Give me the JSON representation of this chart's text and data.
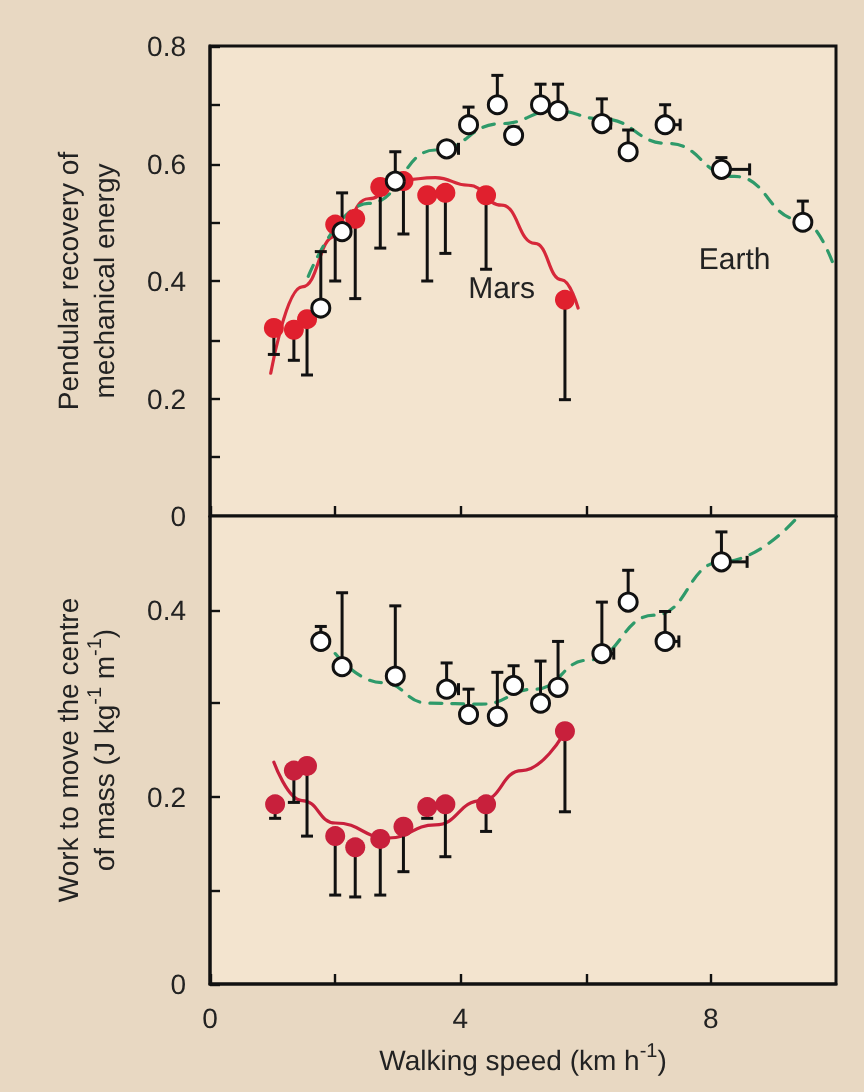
{
  "chart_data": [
    {
      "type": "scatter",
      "ylabel": "Pendular recovery of mechanical energy",
      "xlim": [
        0,
        10
      ],
      "ylim": [
        0,
        0.8
      ],
      "xticks": [
        0,
        2,
        4,
        6,
        8
      ],
      "yticks": [
        0,
        {
          "value": 0.1,
          "label": null
        },
        0.2,
        {
          "value": 0.3,
          "label": null
        },
        0.4,
        {
          "value": 0.5,
          "label": null
        },
        0.6,
        {
          "value": 0.7,
          "label": null
        },
        0.8
      ],
      "tick_labels": "y",
      "marker": "circle",
      "series": [
        {
          "type": "line",
          "name": "Mars",
          "color": "#d6283a",
          "line_style": "solid",
          "marker": "none",
          "x": [
            0.97,
            1.47,
            2.0,
            2.53,
            3.06,
            3.6,
            4.13,
            4.66,
            5.19,
            5.62,
            5.88
          ],
          "values": [
            0.243,
            0.39,
            0.476,
            0.54,
            0.572,
            0.576,
            0.563,
            0.529,
            0.464,
            0.402,
            0.354
          ]
        },
        {
          "type": "line",
          "name": "Earth",
          "color": "#2e9a6a",
          "line_style": "dashed",
          "marker": "none",
          "x": [
            1.57,
            2.53,
            3.6,
            4.66,
            5.51,
            6.26,
            7.32,
            8.38,
            9.45,
            9.98
          ],
          "values": [
            0.408,
            0.532,
            0.623,
            0.668,
            0.69,
            0.676,
            0.634,
            0.578,
            0.504,
            0.422
          ]
        },
        {
          "color": "#e0202e",
          "x": [
            1.02,
            1.34,
            1.55,
            2.0,
            2.32,
            2.72,
            3.09,
            3.47,
            3.76,
            4.41,
            5.67
          ],
          "values": [
            0.32,
            0.317,
            0.335,
            0.496,
            0.506,
            0.56,
            0.57,
            0.546,
            0.55,
            0.546,
            0.368
          ],
          "errors": [
            [
              0.275,
              0.32
            ],
            [
              0.265,
              0.317
            ],
            [
              0.24,
              0.335
            ],
            [
              0.4,
              0.496
            ],
            [
              0.37,
              0.506
            ],
            [
              0.456,
              0.56
            ],
            [
              0.48,
              0.57
            ],
            [
              0.4,
              0.546
            ],
            [
              0.447,
              0.55
            ],
            [
              0.42,
              0.546
            ],
            [
              0.198,
              0.368
            ]
          ]
        },
        {
          "color": "#ffffff",
          "x": [
            1.77,
            2.11,
            2.96,
            3.78,
            4.13,
            4.59,
            4.85,
            5.28,
            5.56,
            6.26,
            6.68,
            7.27,
            8.17,
            9.47
          ],
          "values": [
            0.354,
            0.484,
            0.57,
            0.625,
            0.666,
            0.7,
            0.648,
            0.7,
            0.69,
            0.668,
            0.62,
            0.666,
            0.59,
            0.5
          ],
          "errors": [
            [
              0.354,
              0.45
            ],
            [
              0.484,
              0.55
            ],
            [
              0.57,
              0.62
            ],
            [
              0.625,
              0.636
            ],
            [
              0.666,
              0.696
            ],
            [
              0.7,
              0.75
            ],
            [
              0.648,
              0.662
            ],
            [
              0.7,
              0.735
            ],
            [
              0.69,
              0.735
            ],
            [
              0.668,
              0.71
            ],
            [
              0.62,
              0.657
            ],
            [
              0.666,
              0.7
            ],
            [
              0.59,
              0.61
            ],
            [
              0.5,
              0.536
            ]
          ],
          "xerrors": [
            null,
            null,
            null,
            [
              3.78,
              3.97
            ],
            null,
            null,
            null,
            null,
            null,
            [
              6.26,
              6.4
            ],
            null,
            [
              7.27,
              7.51
            ],
            [
              8.17,
              8.62
            ],
            null
          ]
        }
      ]
    },
    {
      "type": "scatter",
      "xlabel": "Walking speed (km h$^{-1}$)",
      "ylabel": "Work to move the centre of mass (J kg$^{-1}$ m$^{-1}$)",
      "xlim": [
        0,
        10
      ],
      "ylim": [
        0,
        0.5
      ],
      "xticks": [
        0,
        {
          "value": 2,
          "label": null
        },
        4,
        {
          "value": 6,
          "label": null
        },
        8
      ],
      "yticks": [
        0,
        {
          "value": 0.1,
          "label": null
        },
        0.2,
        {
          "value": 0.3,
          "label": null
        },
        0.4
      ],
      "marker": "circle",
      "series": [
        {
          "type": "line",
          "color": "#c8203c",
          "line_style": "solid",
          "marker": "none",
          "x": [
            1.02,
            1.47,
            2.0,
            2.85,
            3.6,
            4.34,
            4.98,
            5.62
          ],
          "values": [
            0.237,
            0.196,
            0.172,
            0.156,
            0.17,
            0.196,
            0.228,
            0.264
          ]
        },
        {
          "type": "line",
          "color": "#2e9a6a",
          "line_style": "dashed",
          "marker": "none",
          "x": [
            2.0,
            2.74,
            3.49,
            4.34,
            5.19,
            6.04,
            7.1,
            8.17,
            9.39
          ],
          "values": [
            0.353,
            0.322,
            0.3,
            0.299,
            0.315,
            0.346,
            0.394,
            0.451,
            0.499
          ]
        },
        {
          "color": "#c8203c",
          "x": [
            1.04,
            1.34,
            1.55,
            2.0,
            2.32,
            2.72,
            3.09,
            3.47,
            3.76,
            4.41,
            5.67
          ],
          "values": [
            0.192,
            0.228,
            0.233,
            0.158,
            0.146,
            0.155,
            0.168,
            0.189,
            0.192,
            0.192,
            0.27
          ],
          "errors": [
            [
              0.177,
              0.192
            ],
            [
              0.194,
              0.228
            ],
            [
              0.158,
              0.233
            ],
            [
              0.095,
              0.158
            ],
            [
              0.093,
              0.146
            ],
            [
              0.095,
              0.155
            ],
            [
              0.12,
              0.168
            ],
            [
              0.177,
              0.189
            ],
            [
              0.136,
              0.192
            ],
            [
              0.163,
              0.192
            ],
            [
              0.184,
              0.27
            ]
          ]
        },
        {
          "color": "#ffffff",
          "x": [
            1.77,
            2.11,
            2.96,
            3.78,
            4.13,
            4.59,
            4.85,
            5.28,
            5.56,
            6.26,
            6.68,
            7.27,
            8.17
          ],
          "values": [
            0.366,
            0.339,
            0.329,
            0.315,
            0.288,
            0.286,
            0.319,
            0.3,
            0.317,
            0.353,
            0.408,
            0.366,
            0.451
          ],
          "errors": [
            [
              0.366,
              0.382
            ],
            [
              0.339,
              0.418
            ],
            [
              0.329,
              0.404
            ],
            [
              0.315,
              0.343
            ],
            [
              0.288,
              0.315
            ],
            [
              0.286,
              0.333
            ],
            [
              0.319,
              0.34
            ],
            [
              0.3,
              0.345
            ],
            [
              0.317,
              0.366
            ],
            [
              0.353,
              0.408
            ],
            [
              0.408,
              0.442
            ],
            [
              0.366,
              0.398
            ],
            [
              0.451,
              0.483
            ]
          ],
          "xerrors": [
            null,
            null,
            null,
            [
              3.78,
              3.97
            ],
            null,
            null,
            null,
            null,
            null,
            [
              6.26,
              6.45
            ],
            null,
            [
              7.27,
              7.49
            ],
            [
              8.17,
              8.58
            ]
          ]
        }
      ]
    }
  ]
}
